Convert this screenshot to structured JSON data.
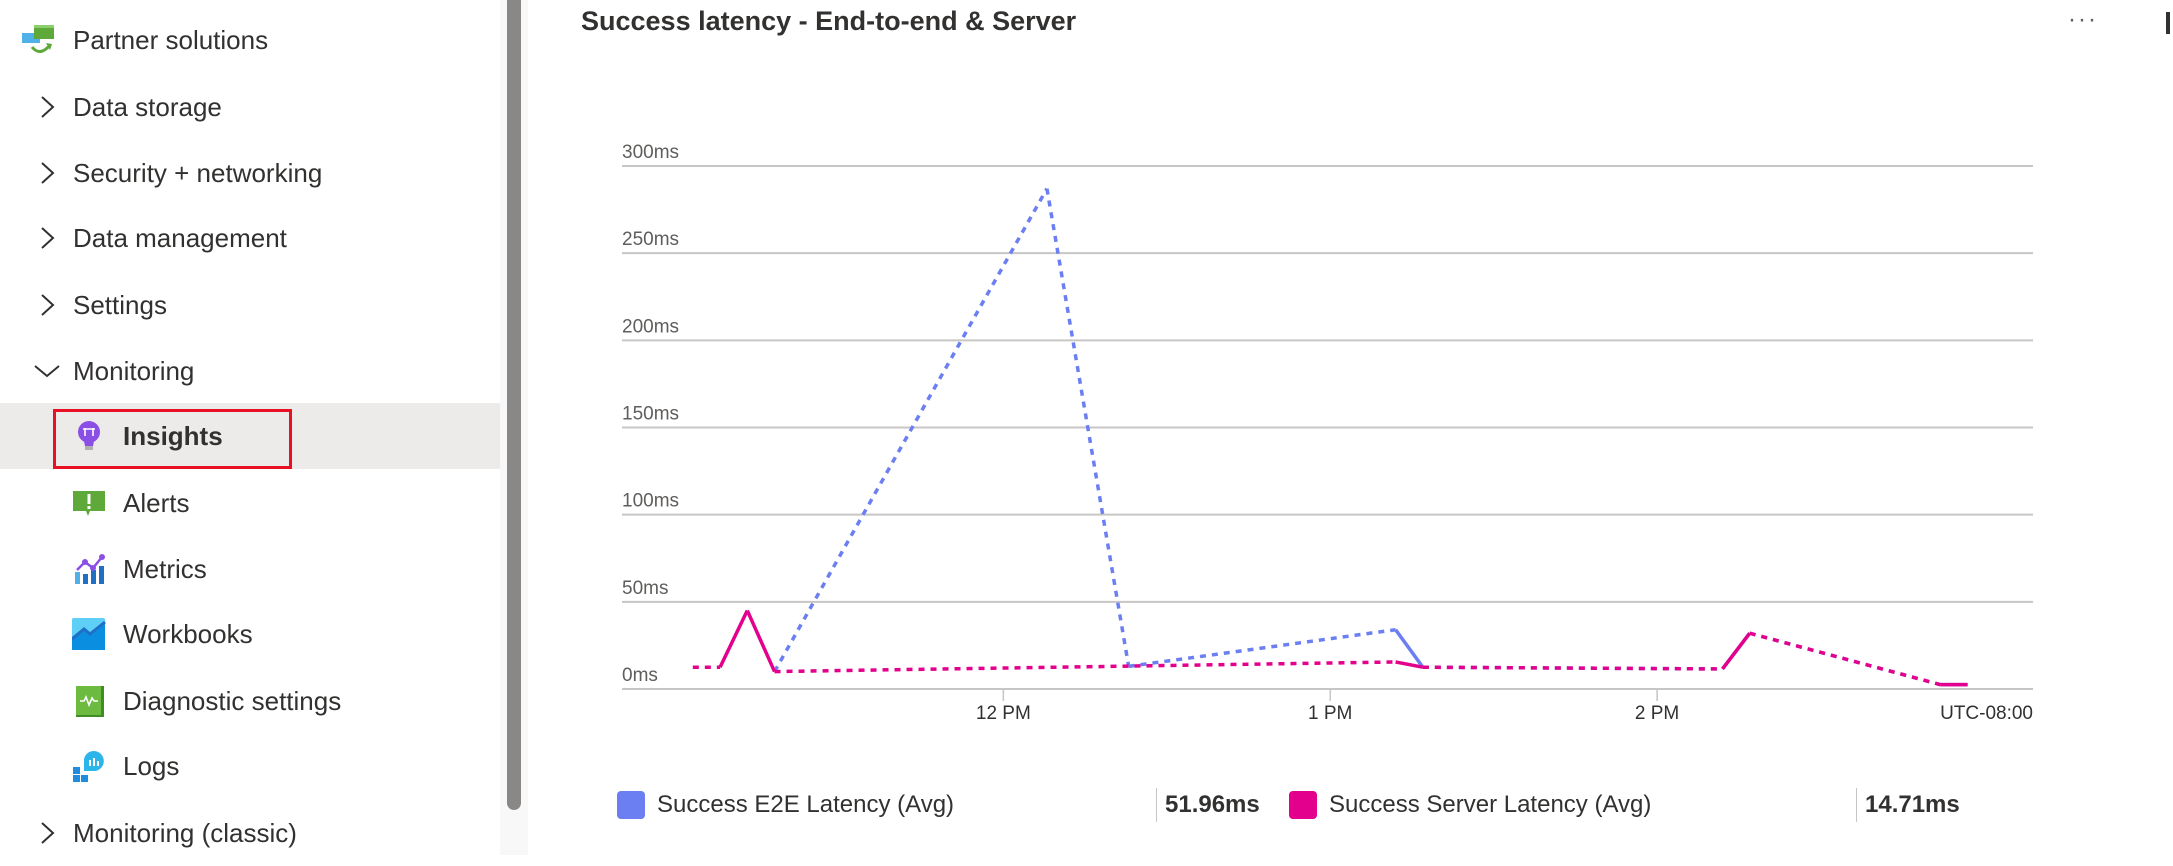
{
  "sidebar": {
    "items": [
      {
        "label": "Partner solutions",
        "icon": "partner-solutions-icon",
        "expandable": false
      },
      {
        "label": "Data storage",
        "icon": "chevron-right-icon",
        "expanded": false
      },
      {
        "label": "Security + networking",
        "icon": "chevron-right-icon",
        "expanded": false
      },
      {
        "label": "Data management",
        "icon": "chevron-right-icon",
        "expanded": false
      },
      {
        "label": "Settings",
        "icon": "chevron-right-icon",
        "expanded": false
      },
      {
        "label": "Monitoring",
        "icon": "chevron-down-icon",
        "expanded": true
      },
      {
        "label": "Insights",
        "icon": "lightbulb-icon",
        "selected": true
      },
      {
        "label": "Alerts",
        "icon": "alert-icon"
      },
      {
        "label": "Metrics",
        "icon": "metrics-icon"
      },
      {
        "label": "Workbooks",
        "icon": "workbooks-icon"
      },
      {
        "label": "Diagnostic settings",
        "icon": "diagnostic-settings-icon"
      },
      {
        "label": "Logs",
        "icon": "logs-icon"
      },
      {
        "label": "Monitoring (classic)",
        "icon": "chevron-right-icon",
        "expanded": false
      }
    ]
  },
  "panel": {
    "title": "Success latency - End-to-end & Server",
    "more_label": "···"
  },
  "chart_data": {
    "type": "line",
    "title": "Success latency - End-to-end & Server",
    "x_axis": {
      "range": [
        "10:50",
        "15:09"
      ],
      "ticks": [
        "12 PM",
        "1 PM",
        "2 PM"
      ],
      "tick_values": [
        "12:00",
        "13:00",
        "14:00"
      ],
      "timezone_label": "UTC-08:00"
    },
    "y_axis": {
      "range": [
        0,
        300
      ],
      "ticks": [
        "0ms",
        "50ms",
        "100ms",
        "150ms",
        "200ms",
        "250ms",
        "300ms"
      ],
      "tick_values": [
        0,
        50,
        100,
        150,
        200,
        250,
        300
      ],
      "unit": "ms"
    },
    "grid": true,
    "legend": "bottom",
    "series": [
      {
        "name": "Success E2E Latency (Avg)",
        "color": "#6b7ff2",
        "summary": "51.96ms",
        "points": [
          [
            "11:18",
            10
          ],
          [
            "12:08",
            287
          ],
          [
            "12:23",
            13
          ],
          [
            "13:12",
            34
          ],
          [
            "13:17",
            12.5
          ],
          [
            "14:12",
            11.5
          ],
          [
            "14:17",
            32
          ],
          [
            "14:52",
            2.5
          ],
          [
            "14:57",
            2.5
          ]
        ]
      },
      {
        "name": "Success Server Latency (Avg)",
        "color": "#e3008c",
        "summary": "14.71ms",
        "points": [
          [
            "11:03",
            12.5
          ],
          [
            "11:08",
            12.5
          ],
          [
            "11:13",
            45
          ],
          [
            "11:18",
            10
          ],
          [
            "13:12",
            15.5
          ],
          [
            "13:17",
            12.5
          ],
          [
            "14:12",
            11.5
          ],
          [
            "14:17",
            32
          ],
          [
            "14:52",
            2.5
          ],
          [
            "14:57",
            2.5
          ]
        ]
      }
    ]
  }
}
